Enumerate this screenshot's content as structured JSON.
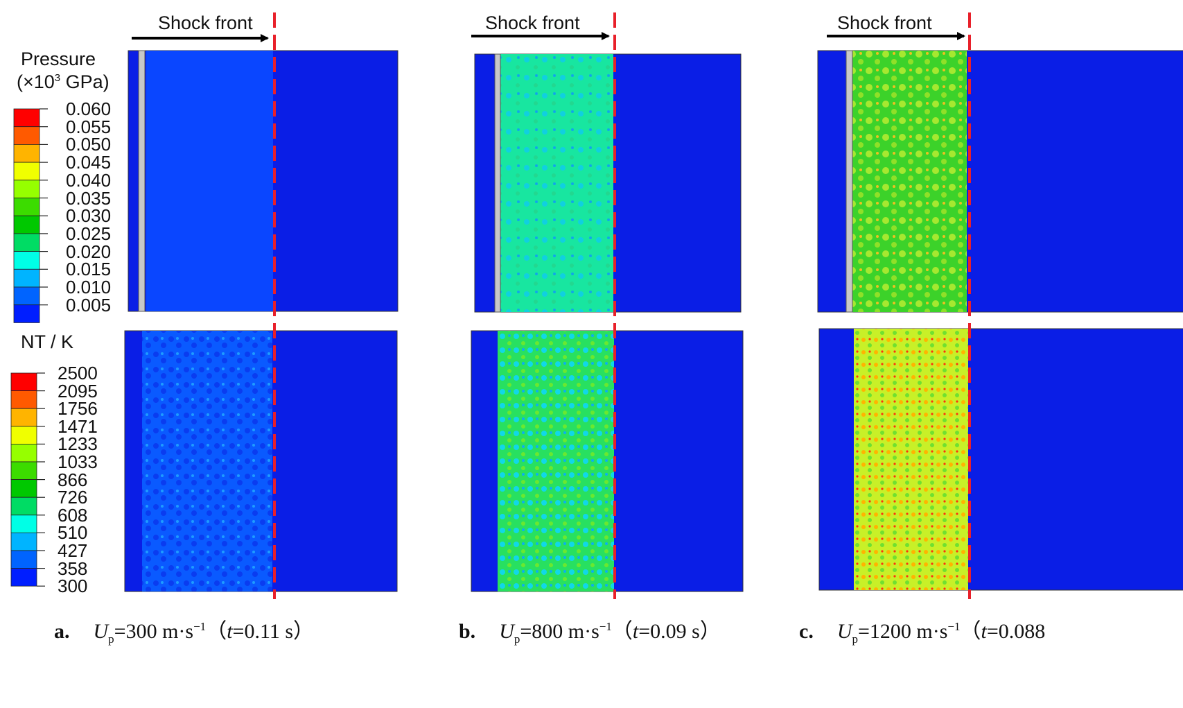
{
  "shock_front_label": "Shock front",
  "pressure_legend": {
    "title_line1": "Pressure",
    "title_line2_prefix": "(×10",
    "title_line2_exp": "3",
    "title_line2_suffix": " GPa)",
    "ticks": [
      "0.060",
      "0.055",
      "0.050",
      "0.045",
      "0.040",
      "0.035",
      "0.030",
      "0.025",
      "0.020",
      "0.015",
      "0.010",
      "0.005"
    ],
    "colors": [
      "#ff0000",
      "#ff5a00",
      "#ffb400",
      "#f0ff00",
      "#96ff00",
      "#3cdc00",
      "#00c800",
      "#00dc64",
      "#00ffe6",
      "#00b4ff",
      "#0064ff",
      "#001eff"
    ]
  },
  "temperature_legend": {
    "title": "NT / K",
    "ticks": [
      "2500",
      "2095",
      "1756",
      "1471",
      "1233",
      "1033",
      "866",
      "726",
      "608",
      "510",
      "427",
      "358",
      "300"
    ],
    "colors": [
      "#ff0000",
      "#ff5a00",
      "#ffb400",
      "#f0ff00",
      "#96ff00",
      "#3cdc00",
      "#00c800",
      "#00dc64",
      "#00ffe6",
      "#00b4ff",
      "#0064ff",
      "#001eff"
    ]
  },
  "panels": [
    {
      "letter": "a.",
      "var": "U",
      "sub": "p",
      "rest": "=300 m·s",
      "exp": "−1",
      "tail1": "（",
      "t": "t",
      "tail2": "=0.11  s）",
      "pressure_fill": "#0a46ff",
      "temp_fill": "#0a5aff"
    },
    {
      "letter": "b.",
      "var": "U",
      "sub": "p",
      "rest": "=800 m·s",
      "exp": "−1",
      "tail1": "（",
      "t": "t",
      "tail2": "=0.09  s）",
      "pressure_fill": "#18e6a0",
      "temp_fill": "#28e060"
    },
    {
      "letter": "c.",
      "var": "U",
      "sub": "p",
      "rest": "=1200 m·s",
      "exp": "−1",
      "tail1": "（",
      "t": "t",
      "tail2": "=0.088",
      "pressure_fill": "#4cd62c",
      "temp_fill": "#c8f028"
    }
  ],
  "colors": {
    "background_blue": "#0a1ee6",
    "shock_line": "#e8202a"
  }
}
